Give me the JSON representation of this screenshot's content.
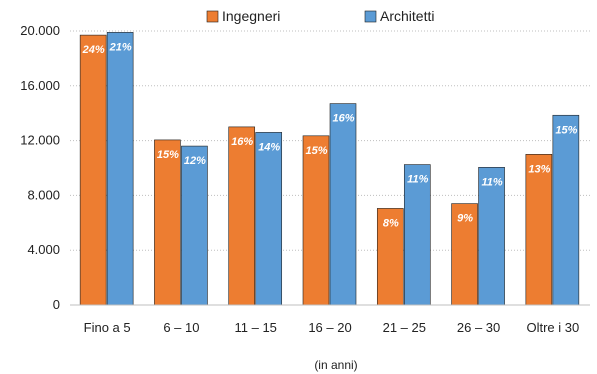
{
  "chart_data": {
    "type": "bar",
    "xlabel": "(in anni)",
    "ylabel": "",
    "ylim": [
      0,
      20000
    ],
    "yticks": [
      0,
      4000,
      8000,
      12000,
      16000,
      20000
    ],
    "ytick_labels": [
      "0",
      "4.000",
      "8.000",
      "12.000",
      "16.000",
      "20.000"
    ],
    "grid": "horizontal dotted",
    "legend": "top",
    "categories": [
      "Fino a 5",
      "6 – 10",
      "11 – 15",
      "16 – 20",
      "21 – 25",
      "26 – 30",
      "Oltre i 30"
    ],
    "series": [
      {
        "name": "Ingegneri",
        "color": "#ED7D31",
        "values": [
          19700,
          12050,
          13000,
          12350,
          7050,
          7400,
          11000
        ],
        "labels": [
          "24%",
          "15%",
          "16%",
          "15%",
          "8%",
          "9%",
          "13%"
        ]
      },
      {
        "name": "Architetti",
        "color": "#5B9BD5",
        "values": [
          19900,
          11600,
          12600,
          14700,
          10250,
          10050,
          13850
        ],
        "labels": [
          "21%",
          "12%",
          "14%",
          "16%",
          "11%",
          "11%",
          "15%"
        ]
      }
    ]
  }
}
